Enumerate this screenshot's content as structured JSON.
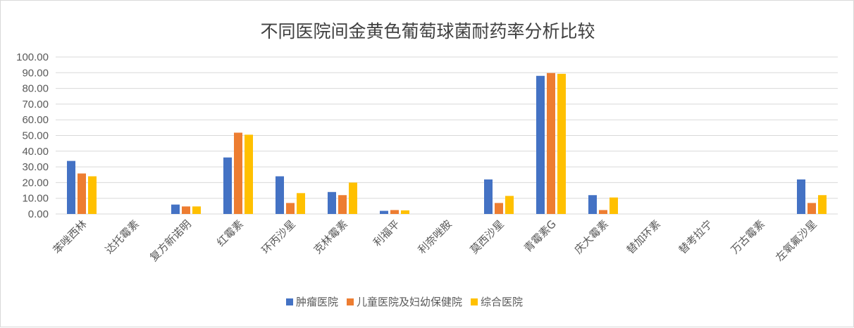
{
  "chart_data": {
    "type": "bar",
    "title": "不同医院间金黄色葡萄球菌耐药率分析比较",
    "xlabel": "",
    "ylabel": "",
    "ylim": [
      0,
      100
    ],
    "ytick_step": 10,
    "ytick_labels": [
      "0.00",
      "10.00",
      "20.00",
      "30.00",
      "40.00",
      "50.00",
      "60.00",
      "70.00",
      "80.00",
      "90.00",
      "100.00"
    ],
    "grid": true,
    "legend_position": "bottom",
    "categories": [
      "苯唑西林",
      "达托霉素",
      "复方新诺明",
      "红霉素",
      "环丙沙星",
      "克林霉素",
      "利福平",
      "利奈唑胺",
      "莫西沙星",
      "青霉素G",
      "庆大霉素",
      "替加环素",
      "替考拉宁",
      "万古霉素",
      "左氧氟沙星"
    ],
    "series": [
      {
        "name": "肿瘤医院",
        "color": "#4472c4",
        "values": [
          33.8,
          0,
          6.0,
          36.0,
          24.0,
          14.0,
          2.0,
          0,
          22.0,
          88.0,
          12.0,
          0,
          0,
          0,
          22.0
        ]
      },
      {
        "name": "儿童医院及妇幼保健院",
        "color": "#ed7d31",
        "values": [
          25.8,
          0,
          4.8,
          51.8,
          7.0,
          12.0,
          2.5,
          0,
          7.0,
          89.8,
          2.5,
          0,
          0,
          0,
          7.0
        ]
      },
      {
        "name": "综合医院",
        "color": "#ffc000",
        "values": [
          24.0,
          0,
          4.8,
          50.5,
          13.3,
          20.0,
          2.3,
          0,
          11.5,
          89.3,
          10.5,
          0,
          0,
          0,
          12.0
        ]
      }
    ]
  }
}
